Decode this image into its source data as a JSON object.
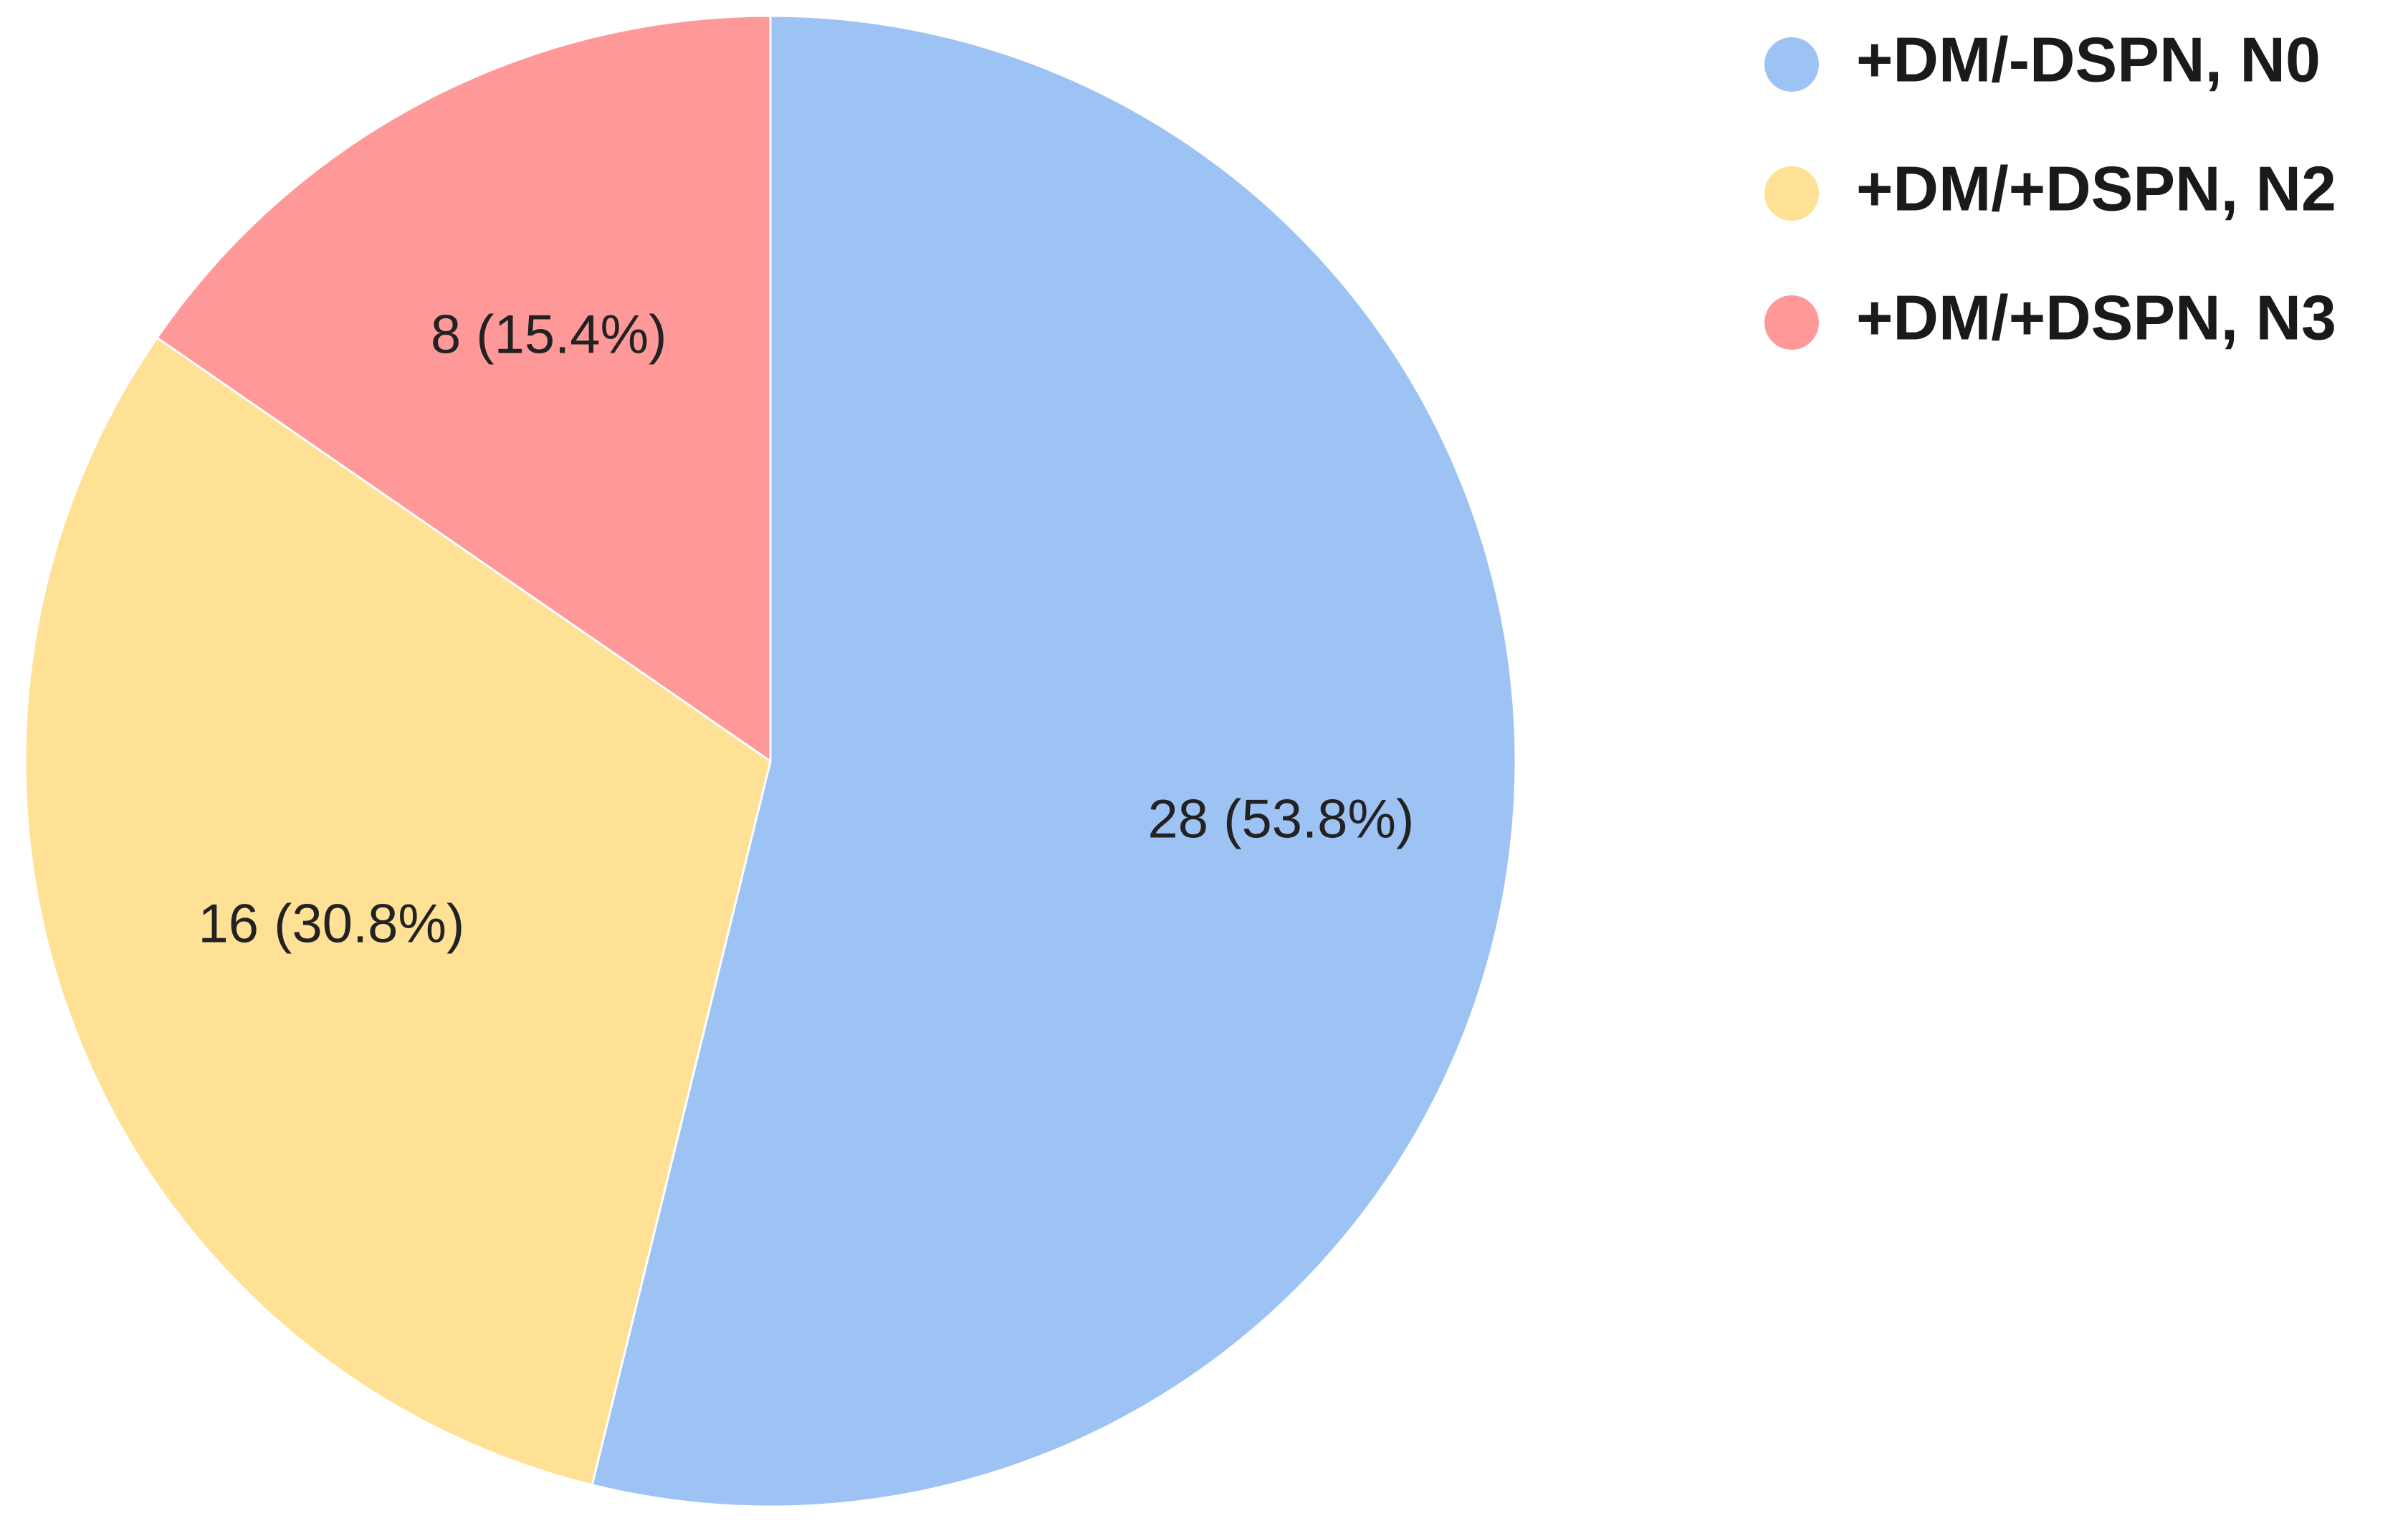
{
  "chart_data": {
    "type": "pie",
    "title": "",
    "start_angle_deg": 0,
    "direction": "clockwise",
    "legend_position": "top-right",
    "slices": [
      {
        "name": "+DM/-DSPN, N0",
        "value": 28,
        "percent": 53.8,
        "label": "28 (53.8%)",
        "color": "#9dc3f5"
      },
      {
        "name": "+DM/+DSPN, N2",
        "value": 16,
        "percent": 30.8,
        "label": "16 (30.8%)",
        "color": "#ffe196"
      },
      {
        "name": "+DM/+DSPN, N3",
        "value": 8,
        "percent": 15.4,
        "label": "8 (15.4%)",
        "color": "#ff9999"
      }
    ]
  }
}
